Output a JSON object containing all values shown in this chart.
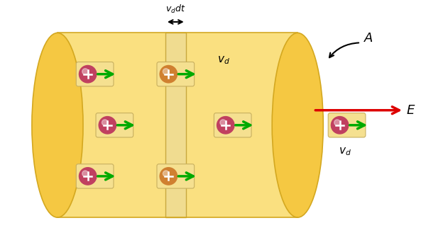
{
  "bg_color": "#ffffff",
  "cylinder_color": "#F5C842",
  "cylinder_light_color": "#FAE080",
  "slice_light_color": "#F0DC90",
  "particle_color": "#C04060",
  "particle_on_slice_color": "#D08030",
  "arrow_color": "#00AA00",
  "E_arrow_color": "#DD0000",
  "text_color": "#000000",
  "figsize": [
    6.0,
    3.39
  ],
  "dpi": 100
}
